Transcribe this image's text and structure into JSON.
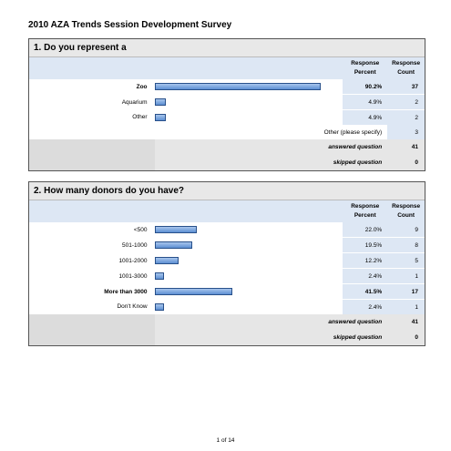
{
  "title": "2010 AZA Trends Session Development Survey",
  "headers": {
    "percent": "Response Percent",
    "count": "Response Count"
  },
  "questions": [
    {
      "title": "1. Do you represent a",
      "rows": [
        {
          "label": "Zoo",
          "percent": "90.2%",
          "count": "37",
          "value": 90.2,
          "bold": true
        },
        {
          "label": "Aquarium",
          "percent": "4.9%",
          "count": "2",
          "value": 4.9,
          "bold": false
        },
        {
          "label": "Other",
          "percent": "4.9%",
          "count": "2",
          "value": 4.9,
          "bold": false
        }
      ],
      "other": {
        "label": "Other (please specify)",
        "count": "3"
      },
      "answered": {
        "label": "answered question",
        "count": "41"
      },
      "skipped": {
        "label": "skipped question",
        "count": "0"
      }
    },
    {
      "title": "2. How many donors do you have?",
      "rows": [
        {
          "label": "<500",
          "percent": "22.0%",
          "count": "9",
          "value": 22.0,
          "bold": false
        },
        {
          "label": "501-1000",
          "percent": "19.5%",
          "count": "8",
          "value": 19.5,
          "bold": false
        },
        {
          "label": "1001-2000",
          "percent": "12.2%",
          "count": "5",
          "value": 12.2,
          "bold": false
        },
        {
          "label": "1001-3000",
          "percent": "2.4%",
          "count": "1",
          "value": 2.4,
          "bold": false
        },
        {
          "label": "More than 3000",
          "percent": "41.5%",
          "count": "17",
          "value": 41.5,
          "bold": true
        },
        {
          "label": "Don't Know",
          "percent": "2.4%",
          "count": "1",
          "value": 2.4,
          "bold": false
        }
      ],
      "answered": {
        "label": "answered question",
        "count": "41"
      },
      "skipped": {
        "label": "skipped question",
        "count": "0"
      }
    }
  ],
  "footer": "1 of 14"
}
